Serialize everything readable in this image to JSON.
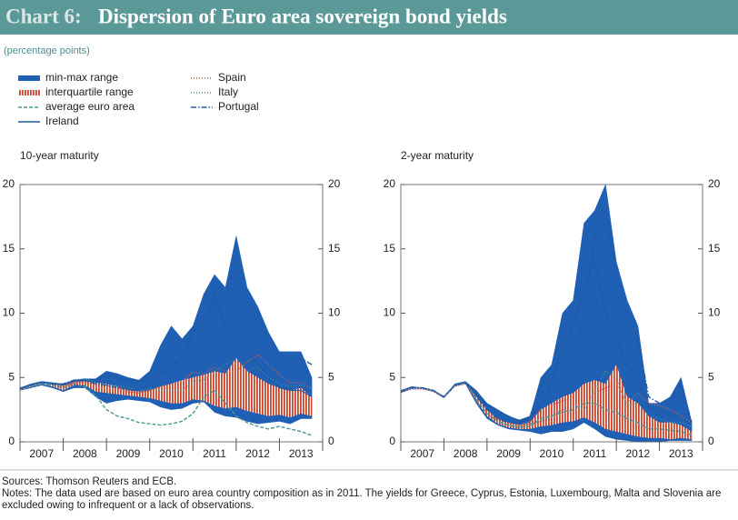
{
  "header": {
    "number": "Chart 6:",
    "title": "Dispersion of Euro area sovereign bond yields",
    "subtitle": "(percentage points)"
  },
  "legend": [
    {
      "name": "min-max range",
      "color": "#1f5fb4",
      "style": "band"
    },
    {
      "name": "interquartile range",
      "color": "#c8462e",
      "style": "hatch"
    },
    {
      "name": "average euro area",
      "color": "#4a9696",
      "style": "dashed"
    },
    {
      "name": "Ireland",
      "color": "#1f5aa8",
      "style": "solid"
    },
    {
      "name": "Spain",
      "color": "#d0604c",
      "style": "dotted"
    },
    {
      "name": "Italy",
      "color": "#4a9696",
      "style": "dotted"
    },
    {
      "name": "Portugal",
      "color": "#1f5aa8",
      "style": "dashdot"
    }
  ],
  "chart_data": [
    {
      "type": "line",
      "title": "10-year maturity",
      "categories": [
        "2007",
        "2008",
        "2009",
        "2010",
        "2011",
        "2012",
        "2013"
      ],
      "x": [
        2007,
        2007.25,
        2007.5,
        2007.75,
        2008,
        2008.25,
        2008.5,
        2008.75,
        2009,
        2009.25,
        2009.5,
        2009.75,
        2010,
        2010.25,
        2010.5,
        2010.75,
        2011,
        2011.25,
        2011.5,
        2011.75,
        2012,
        2012.25,
        2012.5,
        2012.75,
        2013,
        2013.25,
        2013.5,
        2013.75
      ],
      "xlim": [
        2007,
        2014
      ],
      "xticks": [
        2007,
        2008,
        2009,
        2010,
        2011,
        2012,
        2013,
        2014
      ],
      "ylim": [
        0,
        20
      ],
      "yticks": [
        0,
        5,
        10,
        15,
        20
      ],
      "series": [
        {
          "high": [
            4.2,
            4.5,
            4.7,
            4.6,
            4.5,
            4.8,
            4.9,
            4.9,
            5.5,
            5.3,
            5.0,
            4.8,
            5.5,
            7.5,
            9.0,
            8.0,
            9.0,
            11.5,
            13.0,
            12.0,
            16.0,
            12.0,
            10.5,
            8.5,
            7.0,
            7.0,
            7.0,
            5.0
          ],
          "low": [
            4.0,
            4.2,
            4.4,
            4.2,
            3.9,
            4.2,
            4.2,
            3.5,
            3.0,
            3.2,
            3.3,
            3.2,
            3.1,
            2.7,
            2.5,
            2.6,
            3.0,
            3.1,
            2.3,
            2.0,
            1.9,
            1.6,
            1.4,
            1.5,
            1.6,
            1.4,
            1.8,
            1.8
          ]
        },
        {
          "high": [
            4.1,
            4.4,
            4.6,
            4.5,
            4.4,
            4.7,
            4.7,
            4.6,
            4.5,
            4.3,
            4.0,
            3.9,
            4.0,
            4.3,
            4.5,
            4.8,
            5.0,
            5.2,
            5.5,
            5.3,
            6.5,
            5.5,
            5.0,
            4.5,
            4.2,
            4.0,
            4.2,
            3.5
          ],
          "low": [
            4.0,
            4.3,
            4.5,
            4.3,
            4.0,
            4.4,
            4.4,
            3.9,
            3.8,
            3.7,
            3.6,
            3.5,
            3.4,
            3.2,
            3.0,
            3.0,
            3.3,
            3.2,
            2.8,
            2.6,
            2.7,
            2.4,
            2.2,
            2.0,
            2.1,
            1.9,
            2.2,
            2.0
          ]
        },
        {
          "values": [
            4.1,
            4.3,
            4.5,
            4.4,
            4.2,
            4.5,
            4.3,
            3.6,
            2.5,
            2.0,
            1.8,
            1.5,
            1.4,
            1.3,
            1.4,
            1.6,
            2.2,
            3.5,
            4.0,
            3.0,
            2.0,
            1.5,
            1.2,
            1.0,
            1.2,
            1.0,
            0.8,
            0.5
          ]
        },
        {
          "values": [
            4.1,
            4.4,
            4.6,
            4.5,
            4.4,
            4.7,
            4.8,
            4.8,
            5.3,
            5.0,
            4.8,
            4.7,
            4.8,
            5.2,
            5.8,
            6.5,
            8.5,
            9.5,
            11.5,
            9.0,
            7.5,
            7.0,
            6.0,
            5.0,
            4.2,
            4.0,
            4.0,
            3.5
          ]
        },
        {
          "values": [
            4.1,
            4.3,
            4.6,
            4.5,
            4.3,
            4.6,
            4.7,
            4.3,
            4.1,
            4.2,
            3.9,
            3.8,
            4.0,
            4.3,
            4.5,
            4.7,
            5.4,
            5.3,
            5.8,
            5.5,
            5.5,
            6.2,
            6.8,
            6.0,
            5.2,
            4.6,
            4.6,
            4.2
          ]
        },
        {
          "values": [
            4.1,
            4.4,
            4.6,
            4.5,
            4.5,
            4.8,
            4.9,
            4.6,
            4.4,
            4.4,
            4.2,
            4.0,
            4.1,
            4.0,
            4.0,
            4.0,
            4.7,
            4.8,
            5.5,
            6.0,
            6.5,
            5.5,
            5.8,
            5.0,
            4.5,
            4.3,
            4.4,
            4.1
          ]
        },
        {
          "values": [
            4.1,
            4.4,
            4.6,
            4.5,
            4.5,
            4.8,
            4.8,
            4.5,
            4.4,
            4.2,
            4.1,
            4.0,
            4.5,
            5.5,
            6.0,
            6.5,
            7.0,
            9.0,
            11.0,
            11.5,
            13.5,
            11.0,
            10.0,
            8.0,
            6.5,
            6.0,
            6.5,
            6.0
          ]
        }
      ]
    },
    {
      "type": "line",
      "title": "2-year maturity",
      "categories": [
        "2007",
        "2008",
        "2009",
        "2010",
        "2011",
        "2012",
        "2013"
      ],
      "x": [
        2007,
        2007.25,
        2007.5,
        2007.75,
        2008,
        2008.25,
        2008.5,
        2008.75,
        2009,
        2009.25,
        2009.5,
        2009.75,
        2010,
        2010.25,
        2010.5,
        2010.75,
        2011,
        2011.25,
        2011.5,
        2011.75,
        2012,
        2012.25,
        2012.5,
        2012.75,
        2013,
        2013.25,
        2013.5,
        2013.75
      ],
      "xlim": [
        2007,
        2014
      ],
      "xticks": [
        2007,
        2008,
        2009,
        2010,
        2011,
        2012,
        2013,
        2014
      ],
      "ylim": [
        0,
        20
      ],
      "yticks": [
        0,
        5,
        10,
        15,
        20
      ],
      "series": [
        {
          "high": [
            4.0,
            4.3,
            4.2,
            4.0,
            3.5,
            4.5,
            4.7,
            4.0,
            3.0,
            2.5,
            2.0,
            1.7,
            2.0,
            5.0,
            6.0,
            10.0,
            11.0,
            17.0,
            18.0,
            20.0,
            14.0,
            11.0,
            9.0,
            3.0,
            3.0,
            3.5,
            5.0,
            1.5
          ],
          "low": [
            3.8,
            4.1,
            4.1,
            3.9,
            3.4,
            4.3,
            4.5,
            3.0,
            1.8,
            1.3,
            1.0,
            0.9,
            0.8,
            0.6,
            0.8,
            0.8,
            1.0,
            1.5,
            1.0,
            0.4,
            0.2,
            0.1,
            0.0,
            0.0,
            0.0,
            0.1,
            0.1,
            0.1
          ]
        },
        {
          "high": [
            3.9,
            4.2,
            4.2,
            4.0,
            3.5,
            4.4,
            4.6,
            3.5,
            2.5,
            1.8,
            1.5,
            1.3,
            1.5,
            2.5,
            3.0,
            3.5,
            3.8,
            4.5,
            4.8,
            4.5,
            6.0,
            3.5,
            3.0,
            2.0,
            1.5,
            1.5,
            1.3,
            0.8
          ],
          "low": [
            3.8,
            4.1,
            4.1,
            3.9,
            3.4,
            4.3,
            4.5,
            3.2,
            2.0,
            1.4,
            1.1,
            1.0,
            1.0,
            1.2,
            1.3,
            1.5,
            1.6,
            1.9,
            1.5,
            1.0,
            0.8,
            0.6,
            0.4,
            0.3,
            0.3,
            0.2,
            0.3,
            0.2
          ]
        },
        {
          "values": [
            3.9,
            4.2,
            4.2,
            4.0,
            3.5,
            4.4,
            4.6,
            3.3,
            2.2,
            1.6,
            1.3,
            1.1,
            1.2,
            1.8,
            2.0,
            2.3,
            2.5,
            3.0,
            3.0,
            2.5,
            2.3,
            1.8,
            1.5,
            1.0,
            1.0,
            0.9,
            0.8,
            0.5
          ]
        },
        {
          "values": [
            3.9,
            4.2,
            4.2,
            4.0,
            3.5,
            4.4,
            4.6,
            3.8,
            2.8,
            2.4,
            2.0,
            1.6,
            1.8,
            3.0,
            4.5,
            7.5,
            9.0,
            12.0,
            14.0,
            10.0,
            8.0,
            6.0,
            5.0,
            2.5,
            2.5,
            2.0,
            2.0,
            1.2
          ]
        },
        {
          "values": [
            3.9,
            4.2,
            4.2,
            4.0,
            3.5,
            4.4,
            4.6,
            3.4,
            2.2,
            1.7,
            1.5,
            1.3,
            1.6,
            2.5,
            2.8,
            3.2,
            3.5,
            3.5,
            3.8,
            4.2,
            4.5,
            3.0,
            3.8,
            3.0,
            2.8,
            2.5,
            2.0,
            1.5
          ]
        },
        {
          "values": [
            3.9,
            4.2,
            4.2,
            4.0,
            3.5,
            4.4,
            4.6,
            3.3,
            2.2,
            1.5,
            1.3,
            1.2,
            1.4,
            1.6,
            2.0,
            2.5,
            2.8,
            2.5,
            4.0,
            5.5,
            5.0,
            2.8,
            3.0,
            2.0,
            1.8,
            1.5,
            1.5,
            1.2
          ]
        },
        {
          "values": [
            3.9,
            4.2,
            4.2,
            4.0,
            3.5,
            4.4,
            4.6,
            3.6,
            2.5,
            1.8,
            1.5,
            1.4,
            2.0,
            4.5,
            5.0,
            6.5,
            6.0,
            10.0,
            16.0,
            18.0,
            13.0,
            10.0,
            8.0,
            3.5,
            3.0,
            3.2,
            4.5,
            1.5
          ]
        }
      ]
    }
  ],
  "footer": {
    "sources": "Sources: Thomson Reuters and ECB.",
    "notes": "Notes: The data used are based on euro area country composition as in 2011. The yields for Greece, Cyprus, Estonia, Luxembourg, Malta and Slovenia are excluded owing to infrequent or a lack of observations."
  }
}
